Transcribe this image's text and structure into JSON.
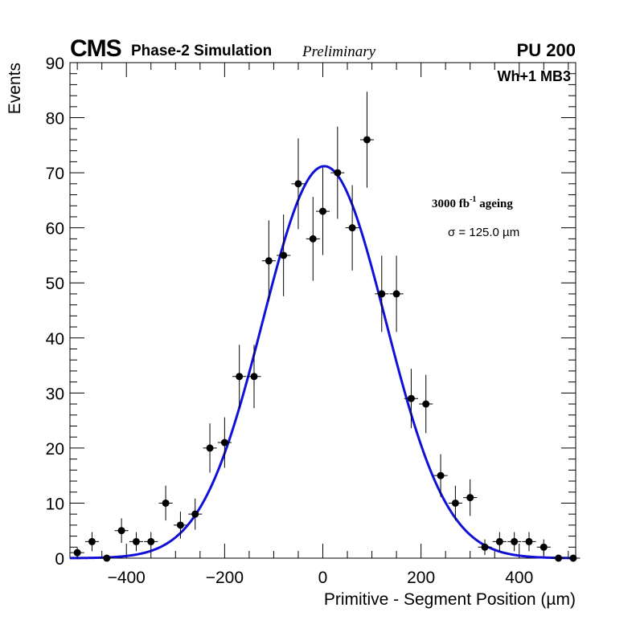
{
  "header": {
    "experiment": "CMS",
    "subtitle": "Phase-2 Simulation",
    "status": "Preliminary",
    "pileup": "PU 200",
    "station": "Wh+1 MB3"
  },
  "annotations": {
    "ageing_main": "3000 fb",
    "ageing_sup": "-1",
    "ageing_rest": " ageing",
    "sigma_label": "σ = 125.0 µm"
  },
  "colors": {
    "fit": "#1010d8",
    "points": "#000000"
  },
  "chart_data": {
    "type": "scatter",
    "title": "",
    "xlabel": "Primitive - Segment Position (µm)",
    "ylabel": "Events",
    "xlim": [
      -515,
      515
    ],
    "ylim": [
      0,
      90
    ],
    "xticks": [
      -400,
      -200,
      0,
      200,
      400
    ],
    "xtick_labels": [
      "−400",
      "−200",
      "0",
      "200",
      "400"
    ],
    "yticks": [
      0,
      10,
      20,
      30,
      40,
      50,
      60,
      70,
      80,
      90
    ],
    "ytick_labels": [
      "0",
      "10",
      "20",
      "30",
      "40",
      "50",
      "60",
      "70",
      "80",
      "90"
    ],
    "bin_half_width": 14,
    "series": [
      {
        "name": "Events",
        "x": [
          -500,
          -470,
          -440,
          -410,
          -380,
          -350,
          -320,
          -290,
          -260,
          -230,
          -200,
          -170,
          -140,
          -110,
          -80,
          -50,
          -20,
          0,
          30,
          60,
          90,
          120,
          150,
          180,
          210,
          240,
          270,
          300,
          330,
          360,
          390,
          420,
          450,
          480,
          510
        ],
        "y": [
          1,
          3,
          0,
          5,
          3,
          3,
          10,
          6,
          8,
          20,
          21,
          33,
          33,
          54,
          55,
          68,
          58,
          63,
          70,
          60,
          76,
          48,
          48,
          29,
          28,
          15,
          10,
          11,
          2,
          3,
          3,
          3,
          2,
          0,
          0
        ]
      }
    ],
    "fit": {
      "name": "Gaussian fit",
      "amplitude": 71.2,
      "mean": 3,
      "sigma": 125.0
    }
  }
}
